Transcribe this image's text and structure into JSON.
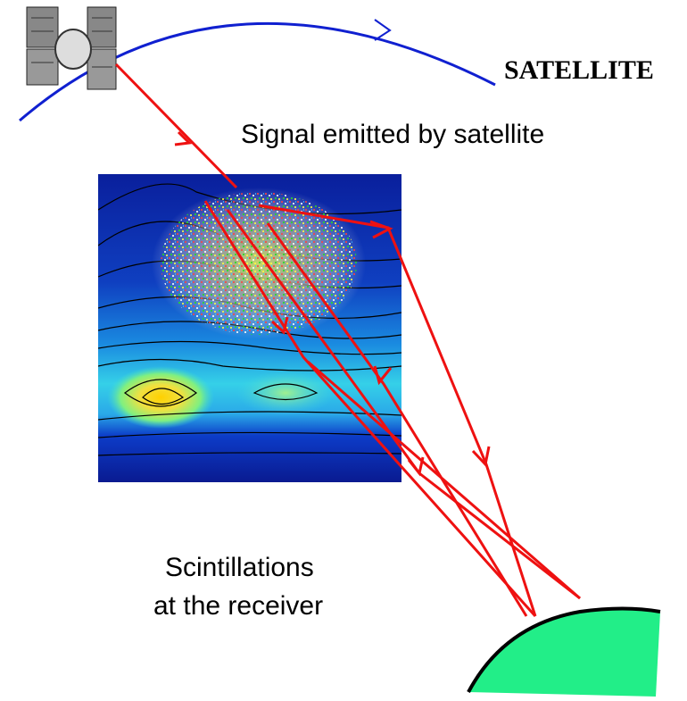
{
  "labels": {
    "satellite": "SATELLITE",
    "signal": "Signal emitted by satellite",
    "scintillations_line1": "Scintillations",
    "scintillations_line2": "at the receiver"
  }
}
